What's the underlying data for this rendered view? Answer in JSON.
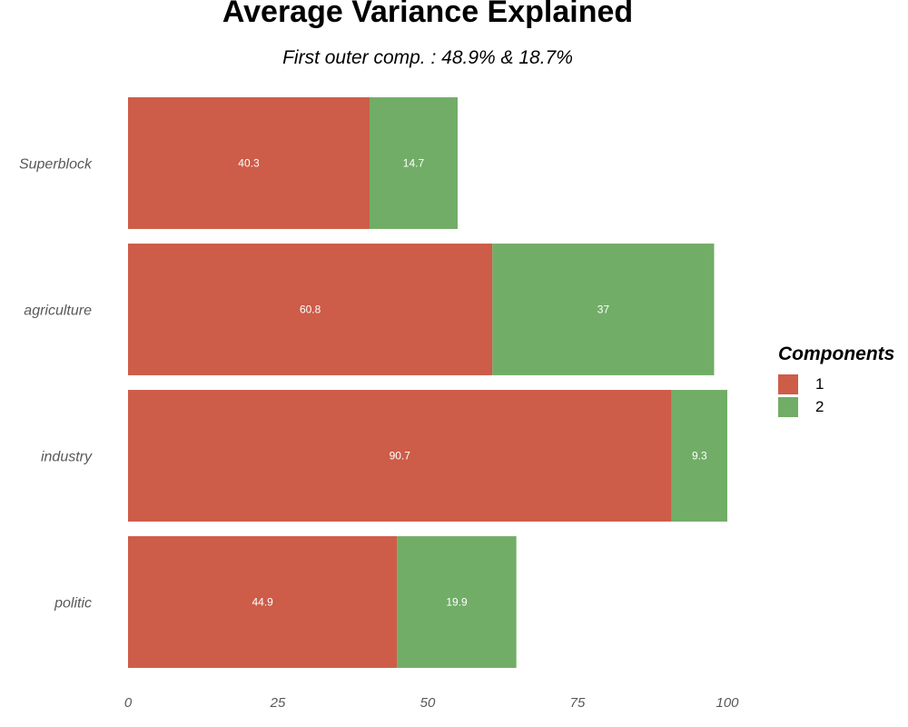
{
  "chart_data": {
    "type": "bar",
    "orientation": "horizontal",
    "stacked": true,
    "title": "Average Variance Explained",
    "subtitle": "First outer comp. : 48.9% & 18.7%",
    "categories": [
      "Superblock",
      "agriculture",
      "industry",
      "politic"
    ],
    "series": [
      {
        "name": "1",
        "values": [
          40.3,
          60.8,
          90.7,
          44.9
        ]
      },
      {
        "name": "2",
        "values": [
          14.7,
          37,
          9.3,
          19.9
        ]
      }
    ],
    "xlim": [
      0,
      100
    ],
    "xticks": [
      "0",
      "25",
      "50",
      "75",
      "100"
    ],
    "legend": {
      "title": "Components",
      "position": "right"
    },
    "colors": [
      "#cd5c48",
      "#71ad67"
    ],
    "grid": false
  }
}
